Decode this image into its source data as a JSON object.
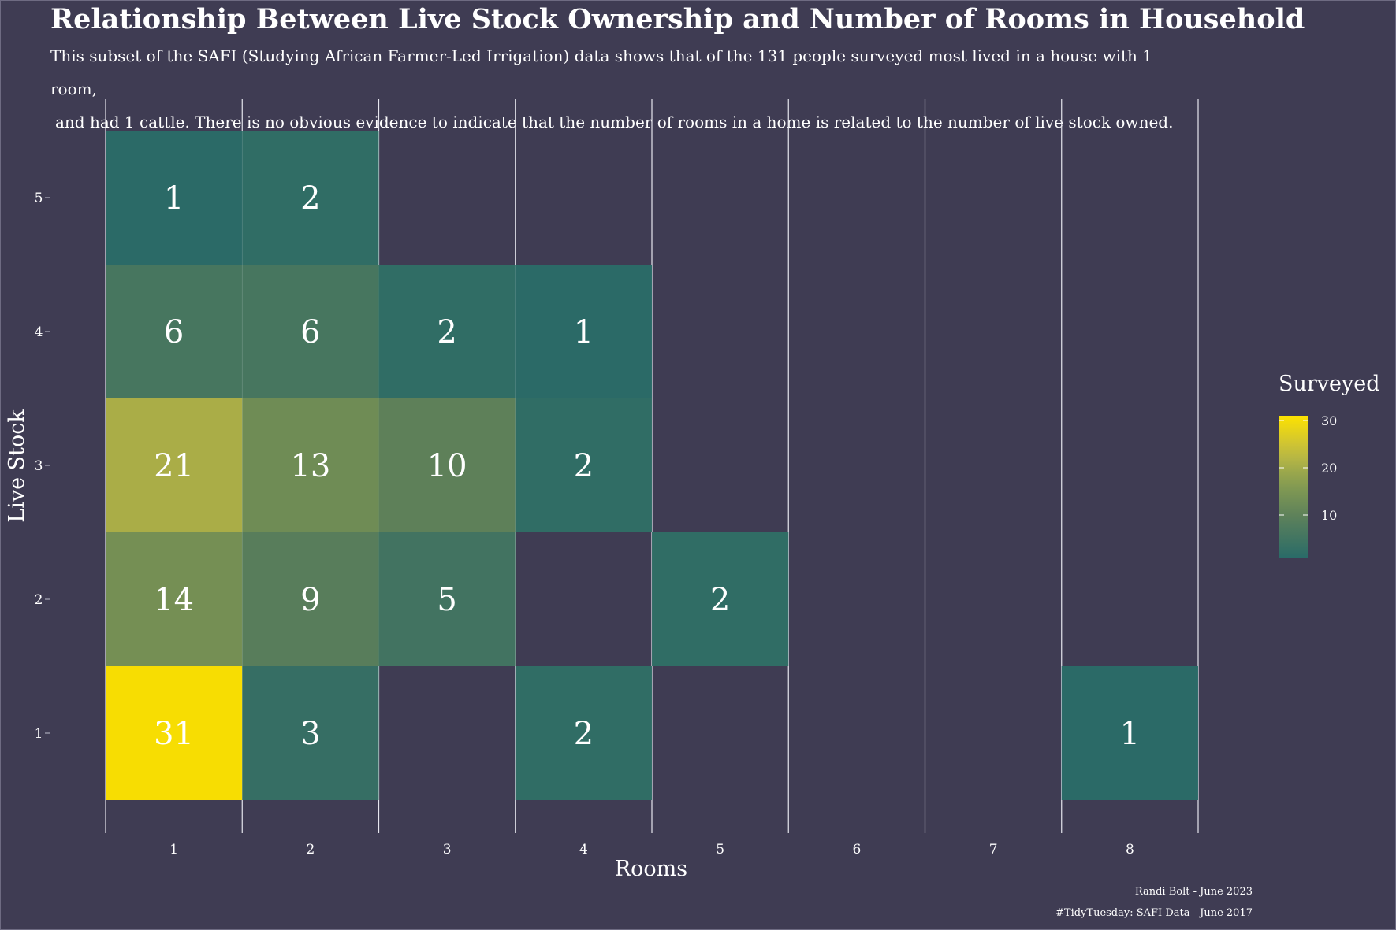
{
  "title": "Relationship Between Live Stock Ownership and Number of Rooms in Household",
  "subtitle": {
    "line1": "This subset of the SAFI (Studying African Farmer-Led Irrigation) data shows that of the 131 people surveyed most lived in a house with 1 room,",
    "line2": "and had 1 cattle. There is no obvious evidence to indicate that the number of rooms in a home is related to the number of live stock owned."
  },
  "caption": {
    "author": "Randi Bolt - June 2023",
    "source": "#TidyTuesday: SAFI Data - June 2017"
  },
  "colors": {
    "background": "#3f3c53",
    "low": "#2a6b68",
    "high": "#fde200"
  },
  "chart_data": {
    "type": "heatmap",
    "xlabel": "Rooms",
    "ylabel": "Live Stock",
    "x_categories": [
      "1",
      "2",
      "3",
      "4",
      "5",
      "6",
      "7",
      "8"
    ],
    "y_categories": [
      "1",
      "2",
      "3",
      "4",
      "5"
    ],
    "legend": {
      "title": "Surveyed",
      "ticks": [
        10,
        20,
        30
      ],
      "range": [
        1,
        31
      ],
      "placement": "right"
    },
    "grid": "vertical",
    "cells": [
      {
        "x": 1,
        "y": 5,
        "value": 1
      },
      {
        "x": 2,
        "y": 5,
        "value": 2
      },
      {
        "x": 1,
        "y": 4,
        "value": 6
      },
      {
        "x": 2,
        "y": 4,
        "value": 6
      },
      {
        "x": 3,
        "y": 4,
        "value": 2
      },
      {
        "x": 4,
        "y": 4,
        "value": 1
      },
      {
        "x": 1,
        "y": 3,
        "value": 21
      },
      {
        "x": 2,
        "y": 3,
        "value": 13
      },
      {
        "x": 3,
        "y": 3,
        "value": 10
      },
      {
        "x": 4,
        "y": 3,
        "value": 2
      },
      {
        "x": 1,
        "y": 2,
        "value": 14
      },
      {
        "x": 2,
        "y": 2,
        "value": 9
      },
      {
        "x": 3,
        "y": 2,
        "value": 5
      },
      {
        "x": 5,
        "y": 2,
        "value": 2
      },
      {
        "x": 1,
        "y": 1,
        "value": 31
      },
      {
        "x": 2,
        "y": 1,
        "value": 3
      },
      {
        "x": 4,
        "y": 1,
        "value": 2
      },
      {
        "x": 8,
        "y": 1,
        "value": 1
      }
    ]
  }
}
